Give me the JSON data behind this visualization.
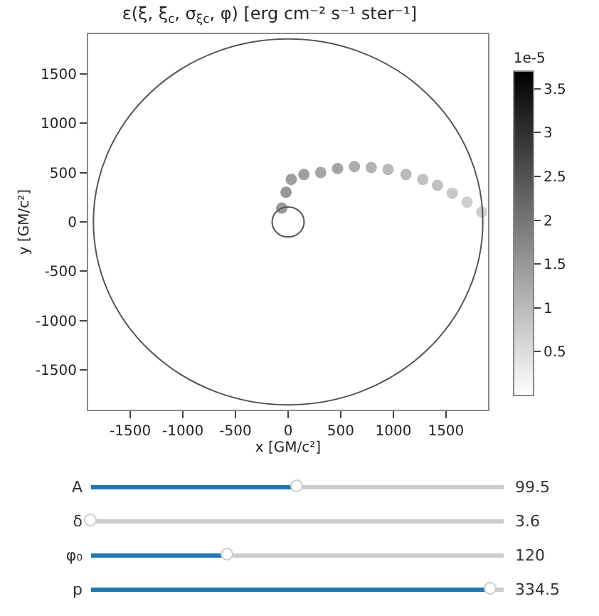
{
  "chart_data": {
    "type": "scatter",
    "title": "ε(ξ, ξ$_{c}$, σ$_{ξc}$, φ) [erg cm⁻² s⁻¹ ster⁻¹]",
    "xlabel": "x [GM/c²]",
    "ylabel": "y [GM/c²]",
    "clabel": "1e-5",
    "xlim": [
      -1900,
      1900
    ],
    "ylim": [
      -1900,
      1900
    ],
    "xticks": [
      -1500,
      -1000,
      -500,
      0,
      500,
      1000,
      1500
    ],
    "yticks": [
      -1500,
      -1000,
      -500,
      0,
      500,
      1000,
      1500
    ],
    "clim": [
      0,
      3.7
    ],
    "cticks": [
      0.5,
      1.0,
      1.5,
      2.0,
      2.5,
      3.0,
      3.5
    ],
    "grid": false,
    "marker": "circle",
    "series": [
      {
        "x": [
          -60,
          -20,
          30,
          150,
          310,
          470,
          630,
          790,
          950,
          1120,
          1280,
          1420,
          1560,
          1700,
          1840
        ],
        "values": [
          140,
          300,
          430,
          480,
          500,
          540,
          560,
          550,
          530,
          480,
          430,
          370,
          290,
          200,
          100
        ],
        "cvalues": [
          1.5,
          1.5,
          1.4,
          1.4,
          1.3,
          1.3,
          1.2,
          1.1,
          1.0,
          1.0,
          0.9,
          0.9,
          0.8,
          0.7,
          0.7
        ],
        "colors": [
          "#989898",
          "#989898",
          "#9e9e9e",
          "#9e9e9e",
          "#a5a5a5",
          "#a5a5a5",
          "#acacac",
          "#b3b3b3",
          "#bababa",
          "#bababa",
          "#c1c1c1",
          "#c1c1c1",
          "#c8c8c8",
          "#cfcfcf",
          "#cfcfcf"
        ]
      }
    ],
    "annotations": [
      "A",
      "99.5",
      "δ",
      "3.6",
      "φ₀",
      "120",
      "p",
      "334.5"
    ]
  }
}
